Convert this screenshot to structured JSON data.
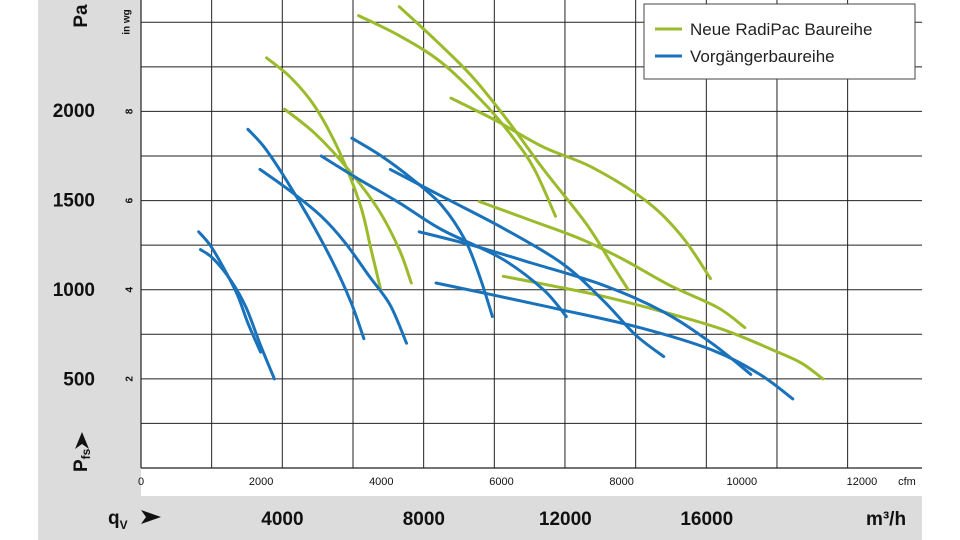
{
  "chart_data": {
    "type": "line",
    "y_left_unit": "Pa",
    "y_inner_unit": "in wg",
    "x_top_unit": "cfm",
    "x_bottom_unit": "m³/h",
    "x_axis_label": "q",
    "x_axis_label_sub": "V",
    "y_axis_label": "P",
    "y_axis_label_sub": "fs",
    "grid": true,
    "xlim_cfm": [
      0,
      13000
    ],
    "ylim_inwg": [
      0,
      10.5
    ],
    "pa_ticks": [
      {
        "value": 500,
        "label": "500"
      },
      {
        "value": 1000,
        "label": "1000"
      },
      {
        "value": 1500,
        "label": "1500"
      },
      {
        "value": 2000,
        "label": "2000"
      }
    ],
    "inwg_ticks": [
      {
        "value": 2,
        "label": "2"
      },
      {
        "value": 4,
        "label": "4"
      },
      {
        "value": 6,
        "label": "6"
      },
      {
        "value": 8,
        "label": "8"
      }
    ],
    "cfm_ticks": [
      {
        "value": 0,
        "label": "0"
      },
      {
        "value": 2000,
        "label": "2000"
      },
      {
        "value": 4000,
        "label": "4000"
      },
      {
        "value": 6000,
        "label": "6000"
      },
      {
        "value": 8000,
        "label": "8000"
      },
      {
        "value": 10000,
        "label": "10000"
      },
      {
        "value": 12000,
        "label": "12000"
      }
    ],
    "m3h_ticks": [
      {
        "value": 4000,
        "label": "4000"
      },
      {
        "value": 8000,
        "label": "8000"
      },
      {
        "value": 12000,
        "label": "12000"
      },
      {
        "value": 16000,
        "label": "16000"
      }
    ],
    "legend": [
      {
        "name": "Neue RadiPac Baureihe",
        "color": "#9bbb2d"
      },
      {
        "name": "Vorgängerbaureihe",
        "color": "#1a72ba"
      }
    ],
    "series": [
      {
        "name": "Neue RadiPac Baureihe",
        "color": "#9bbb2d",
        "curves": [
          [
            [
              2090,
              9.2
            ],
            [
              2500,
              8.75
            ],
            [
              2900,
              8.1
            ],
            [
              3300,
              7.1
            ],
            [
              3650,
              5.9
            ],
            [
              3830,
              4.9
            ],
            [
              3990,
              4.0
            ]
          ],
          [
            [
              2390,
              8.05
            ],
            [
              2900,
              7.5
            ],
            [
              3450,
              6.7
            ],
            [
              3950,
              5.8
            ],
            [
              4300,
              4.9
            ],
            [
              4500,
              4.15
            ]
          ],
          [
            [
              3620,
              10.15
            ],
            [
              4300,
              9.7
            ],
            [
              5000,
              9.1
            ],
            [
              5700,
              8.2
            ],
            [
              6200,
              7.4
            ],
            [
              6550,
              6.7
            ],
            [
              6900,
              5.65
            ]
          ],
          [
            [
              4300,
              10.35
            ],
            [
              4900,
              9.6
            ],
            [
              5500,
              8.8
            ],
            [
              6100,
              7.8
            ],
            [
              6700,
              6.7
            ],
            [
              7400,
              5.5
            ],
            [
              7850,
              4.55
            ],
            [
              8110,
              4.0
            ]
          ],
          [
            [
              5160,
              8.3
            ],
            [
              5900,
              7.8
            ],
            [
              6700,
              7.2
            ],
            [
              7500,
              6.75
            ],
            [
              8400,
              6.0
            ],
            [
              9000,
              5.2
            ],
            [
              9480,
              4.25
            ]
          ],
          [
            [
              5630,
              5.98
            ],
            [
              6500,
              5.55
            ],
            [
              7300,
              5.15
            ],
            [
              8000,
              4.7
            ],
            [
              8800,
              4.1
            ],
            [
              9600,
              3.6
            ],
            [
              10050,
              3.15
            ]
          ],
          [
            [
              6030,
              4.3
            ],
            [
              6800,
              4.1
            ],
            [
              7700,
              3.85
            ],
            [
              8700,
              3.5
            ],
            [
              9700,
              3.1
            ],
            [
              10600,
              2.6
            ],
            [
              11000,
              2.35
            ],
            [
              11350,
              2.0
            ]
          ]
        ]
      },
      {
        "name": "Vorgängerbaureihe",
        "color": "#1a72ba",
        "curves": [
          [
            [
              960,
              5.3
            ],
            [
              1150,
              5.0
            ],
            [
              1350,
              4.55
            ],
            [
              1600,
              3.9
            ],
            [
              1780,
              3.25
            ],
            [
              1990,
              2.6
            ]
          ],
          [
            [
              990,
              4.9
            ],
            [
              1200,
              4.7
            ],
            [
              1500,
              4.2
            ],
            [
              1750,
              3.6
            ],
            [
              1990,
              2.75
            ],
            [
              2220,
              2.0
            ]
          ],
          [
            [
              1780,
              7.6
            ],
            [
              2050,
              7.2
            ],
            [
              2400,
              6.5
            ],
            [
              2800,
              5.6
            ],
            [
              3200,
              4.6
            ],
            [
              3500,
              3.7
            ],
            [
              3710,
              2.9
            ]
          ],
          [
            [
              1980,
              6.7
            ],
            [
              2500,
              6.2
            ],
            [
              3000,
              5.65
            ],
            [
              3400,
              5.05
            ],
            [
              3800,
              4.3
            ],
            [
              4150,
              3.65
            ],
            [
              4420,
              2.8
            ]
          ],
          [
            [
              3510,
              7.4
            ],
            [
              4000,
              7.0
            ],
            [
              4500,
              6.5
            ],
            [
              5000,
              5.9
            ],
            [
              5400,
              5.1
            ],
            [
              5650,
              4.25
            ],
            [
              5850,
              3.4
            ]
          ],
          [
            [
              3000,
              7.0
            ],
            [
              3600,
              6.5
            ],
            [
              4300,
              5.95
            ],
            [
              5000,
              5.35
            ],
            [
              6000,
              4.7
            ],
            [
              6700,
              4.0
            ],
            [
              7080,
              3.4
            ]
          ],
          [
            [
              4150,
              6.7
            ],
            [
              5000,
              6.1
            ],
            [
              6000,
              5.4
            ],
            [
              7000,
              4.6
            ],
            [
              7700,
              3.75
            ],
            [
              8220,
              3.0
            ],
            [
              8700,
              2.5
            ]
          ],
          [
            [
              4630,
              5.3
            ],
            [
              5500,
              5.0
            ],
            [
              6500,
              4.6
            ],
            [
              7700,
              4.1
            ],
            [
              8700,
              3.5
            ],
            [
              9500,
              2.8
            ],
            [
              10150,
              2.1
            ]
          ],
          [
            [
              4910,
              4.15
            ],
            [
              5800,
              3.9
            ],
            [
              7000,
              3.55
            ],
            [
              8300,
              3.15
            ],
            [
              9500,
              2.65
            ],
            [
              10300,
              2.1
            ],
            [
              10850,
              1.55
            ]
          ]
        ]
      }
    ]
  }
}
